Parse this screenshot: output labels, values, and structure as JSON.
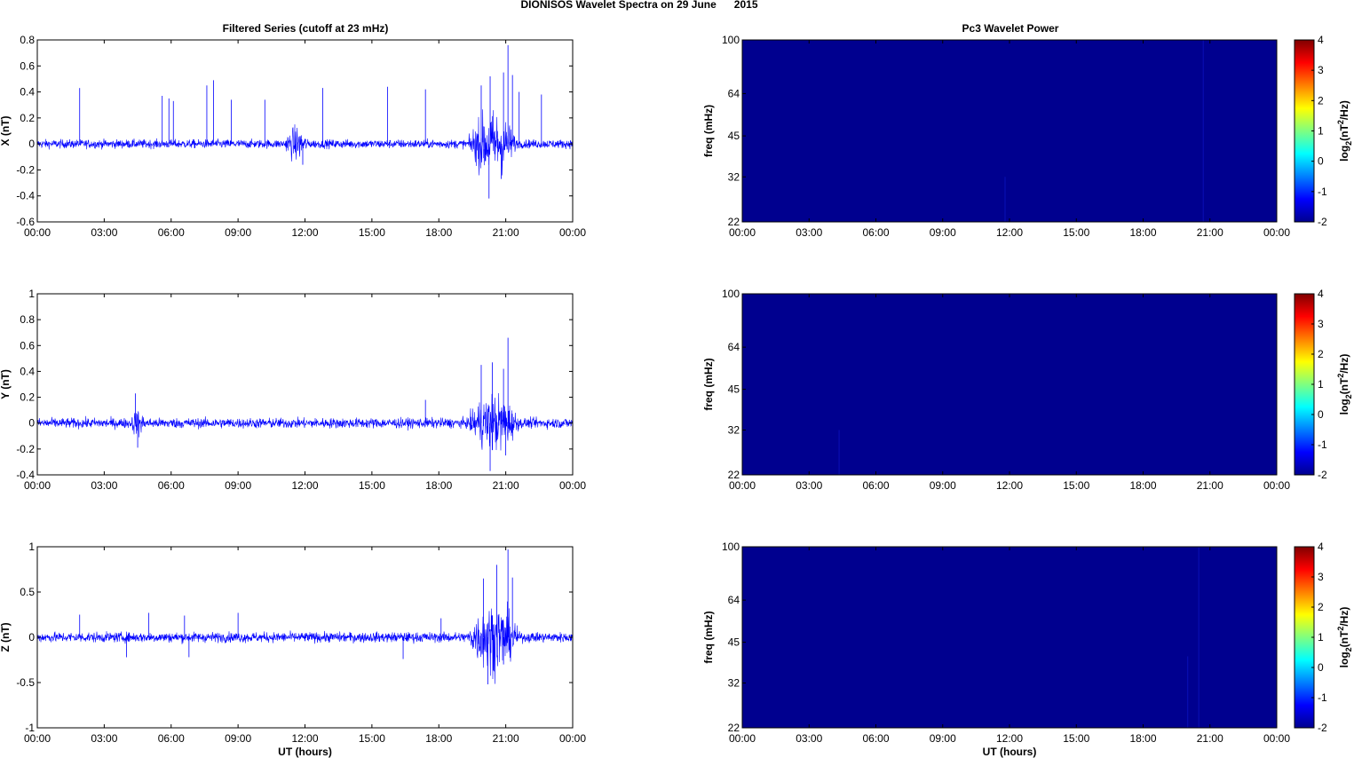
{
  "figure_title": "DIONISOS Wavelet Spectra on 29 June      2015",
  "colors": {
    "signal": "#0000ff",
    "spectrum_bg": "#00008f",
    "axis": "#000000"
  },
  "chart_data": [
    {
      "type": "line",
      "title": "Filtered Series (cutoff at 23 mHz)",
      "ylabel": "X (nT)",
      "xlabel": "",
      "x_range_hours": [
        0,
        24
      ],
      "xticks": [
        "00:00",
        "03:00",
        "06:00",
        "09:00",
        "12:00",
        "15:00",
        "18:00",
        "21:00",
        "00:00"
      ],
      "ylim": [
        -0.6,
        0.8
      ],
      "yticks": [
        -0.6,
        -0.4,
        -0.2,
        0,
        0.2,
        0.4,
        0.6,
        0.8
      ],
      "yticklabels": [
        "-0.6",
        "-0.4",
        "-0.2",
        "0",
        "0.2",
        "0.4",
        "0.6",
        "0.8"
      ],
      "noise_amplitude": 0.03,
      "active_bursts": [
        {
          "start_hour": 11.1,
          "end_hour": 12.1,
          "amplitude": 0.09
        },
        {
          "start_hour": 19.3,
          "end_hour": 21.5,
          "amplitude": 0.2
        }
      ],
      "spikes": [
        {
          "hour": 1.9,
          "value": 0.43
        },
        {
          "hour": 5.6,
          "value": 0.37
        },
        {
          "hour": 5.9,
          "value": 0.35
        },
        {
          "hour": 6.1,
          "value": 0.33
        },
        {
          "hour": 7.6,
          "value": 0.45
        },
        {
          "hour": 7.9,
          "value": 0.49
        },
        {
          "hour": 8.7,
          "value": 0.34
        },
        {
          "hour": 10.2,
          "value": 0.34
        },
        {
          "hour": 12.8,
          "value": 0.43
        },
        {
          "hour": 15.7,
          "value": 0.44
        },
        {
          "hour": 17.4,
          "value": 0.42
        },
        {
          "hour": 19.9,
          "value": 0.45
        },
        {
          "hour": 20.3,
          "value": 0.52
        },
        {
          "hour": 20.9,
          "value": 0.55
        },
        {
          "hour": 21.1,
          "value": 0.76
        },
        {
          "hour": 21.3,
          "value": 0.53
        },
        {
          "hour": 21.6,
          "value": 0.4
        },
        {
          "hour": 22.6,
          "value": 0.38
        },
        {
          "hour": 20.25,
          "value": -0.42
        },
        {
          "hour": 20.8,
          "value": -0.27
        },
        {
          "hour": 11.9,
          "value": -0.16
        }
      ]
    },
    {
      "type": "line",
      "title": "",
      "ylabel": "Y (nT)",
      "xlabel": "",
      "x_range_hours": [
        0,
        24
      ],
      "xticks": [
        "00:00",
        "03:00",
        "06:00",
        "09:00",
        "12:00",
        "15:00",
        "18:00",
        "21:00",
        "00:00"
      ],
      "ylim": [
        -0.4,
        1
      ],
      "yticks": [
        -0.4,
        -0.2,
        0,
        0.2,
        0.4,
        0.6,
        0.8,
        1
      ],
      "yticklabels": [
        "-0.4",
        "-0.2",
        "0",
        "0.2",
        "0.4",
        "0.6",
        "0.8",
        "1"
      ],
      "noise_amplitude": 0.035,
      "active_bursts": [
        {
          "start_hour": 4.2,
          "end_hour": 4.8,
          "amplitude": 0.06
        },
        {
          "start_hour": 19.3,
          "end_hour": 21.6,
          "amplitude": 0.17
        }
      ],
      "spikes": [
        {
          "hour": 4.4,
          "value": 0.23
        },
        {
          "hour": 4.5,
          "value": -0.19
        },
        {
          "hour": 17.4,
          "value": 0.18
        },
        {
          "hour": 19.9,
          "value": 0.45
        },
        {
          "hour": 20.4,
          "value": 0.47
        },
        {
          "hour": 21.1,
          "value": 0.66
        },
        {
          "hour": 20.9,
          "value": 0.42
        },
        {
          "hour": 20.3,
          "value": -0.37
        },
        {
          "hour": 21.0,
          "value": -0.25
        }
      ]
    },
    {
      "type": "line",
      "title": "",
      "ylabel": "Z (nT)",
      "xlabel": "UT (hours)",
      "x_range_hours": [
        0,
        24
      ],
      "xticks": [
        "00:00",
        "03:00",
        "06:00",
        "09:00",
        "12:00",
        "15:00",
        "18:00",
        "21:00",
        "00:00"
      ],
      "ylim": [
        -1,
        1
      ],
      "yticks": [
        -1,
        -0.5,
        0,
        0.5,
        1
      ],
      "yticklabels": [
        "-1",
        "-0.5",
        "0",
        "0.5",
        "1"
      ],
      "noise_amplitude": 0.05,
      "active_bursts": [
        {
          "start_hour": 19.3,
          "end_hour": 21.6,
          "amplitude": 0.3
        }
      ],
      "spikes": [
        {
          "hour": 1.9,
          "value": 0.25
        },
        {
          "hour": 4.0,
          "value": -0.22
        },
        {
          "hour": 5.0,
          "value": 0.27
        },
        {
          "hour": 6.6,
          "value": 0.24
        },
        {
          "hour": 6.8,
          "value": -0.22
        },
        {
          "hour": 9.0,
          "value": 0.27
        },
        {
          "hour": 16.4,
          "value": -0.24
        },
        {
          "hour": 18.1,
          "value": 0.21
        },
        {
          "hour": 20.0,
          "value": 0.65
        },
        {
          "hour": 20.6,
          "value": 0.8
        },
        {
          "hour": 21.1,
          "value": 0.97
        },
        {
          "hour": 21.3,
          "value": 0.66
        },
        {
          "hour": 20.2,
          "value": -0.52
        },
        {
          "hour": 20.9,
          "value": -0.3
        }
      ]
    },
    {
      "type": "heatmap",
      "title": "Pc3 Wavelet Power",
      "ylabel": "freq (mHz)",
      "xlabel": "",
      "x_range_hours": [
        0,
        24
      ],
      "xticks": [
        "00:00",
        "03:00",
        "06:00",
        "09:00",
        "12:00",
        "15:00",
        "18:00",
        "21:00",
        "00:00"
      ],
      "ylim_mHz": [
        22,
        100
      ],
      "y_scale": "log",
      "yticks": [
        22,
        32,
        45,
        64,
        100
      ],
      "yticklabels": [
        "22",
        "32",
        "45",
        "64",
        "100"
      ],
      "colorbar_label": "log2(nT2/Hz)",
      "colorbar_ticks": [
        "-2",
        "-1",
        "0",
        "1",
        "2",
        "3",
        "4"
      ],
      "color_range": [
        -2,
        4
      ],
      "faint_streaks": [
        {
          "hour": 11.8,
          "freq_low": 22,
          "freq_high": 32
        },
        {
          "hour": 20.7,
          "freq_low": 22,
          "freq_high": 100
        }
      ]
    },
    {
      "type": "heatmap",
      "title": "",
      "ylabel": "freq (mHz)",
      "xlabel": "",
      "x_range_hours": [
        0,
        24
      ],
      "xticks": [
        "00:00",
        "03:00",
        "06:00",
        "09:00",
        "12:00",
        "15:00",
        "18:00",
        "21:00",
        "00:00"
      ],
      "ylim_mHz": [
        22,
        100
      ],
      "y_scale": "log",
      "yticks": [
        22,
        32,
        45,
        64,
        100
      ],
      "yticklabels": [
        "22",
        "32",
        "45",
        "64",
        "100"
      ],
      "colorbar_label": "log2(nT2/Hz)",
      "colorbar_ticks": [
        "-2",
        "-1",
        "0",
        "1",
        "2",
        "3",
        "4"
      ],
      "color_range": [
        -2,
        4
      ],
      "faint_streaks": [
        {
          "hour": 4.35,
          "freq_low": 22,
          "freq_high": 32
        }
      ]
    },
    {
      "type": "heatmap",
      "title": "",
      "ylabel": "freq (mHz)",
      "xlabel": "UT (hours)",
      "x_range_hours": [
        0,
        24
      ],
      "xticks": [
        "00:00",
        "03:00",
        "06:00",
        "09:00",
        "12:00",
        "15:00",
        "18:00",
        "21:00",
        "00:00"
      ],
      "ylim_mHz": [
        22,
        100
      ],
      "y_scale": "log",
      "yticks": [
        22,
        32,
        45,
        64,
        100
      ],
      "yticklabels": [
        "22",
        "32",
        "45",
        "64",
        "100"
      ],
      "colorbar_label": "log2(nT2/Hz)",
      "colorbar_ticks": [
        "-2",
        "-1",
        "0",
        "1",
        "2",
        "3",
        "4"
      ],
      "color_range": [
        -2,
        4
      ],
      "faint_streaks": [
        {
          "hour": 20.0,
          "freq_low": 22,
          "freq_high": 40
        },
        {
          "hour": 20.5,
          "freq_low": 22,
          "freq_high": 100
        }
      ]
    }
  ]
}
